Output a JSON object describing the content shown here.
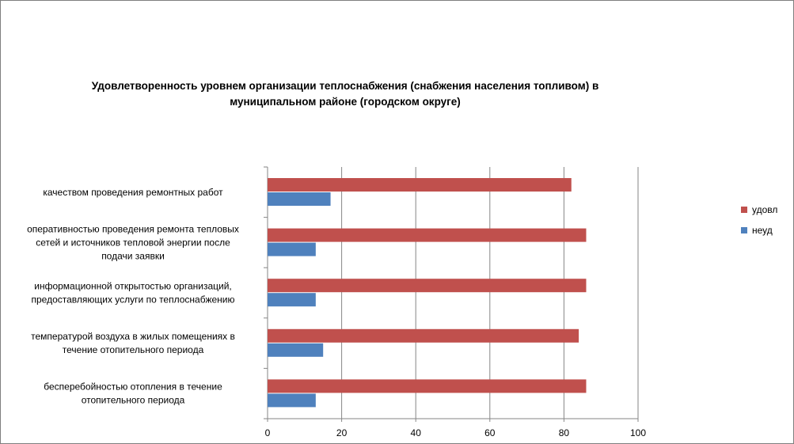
{
  "chart_data": {
    "type": "bar",
    "orientation": "horizontal",
    "title": "Удовлетворенность уровнем организации теплоснабжения (снабжения населения топливом) в муниципальном районе (городском округе)",
    "categories": [
      [
        "качеством проведения ремонтных работ"
      ],
      [
        "оперативностью проведения ремонта тепловых",
        "сетей и источников тепловой энергии после",
        "подачи заявки"
      ],
      [
        "информационной открытостью организаций,",
        "предоставляющих услуги по теплоснабжению"
      ],
      [
        "температурой воздуха в жилых помещениях в",
        "течение отопительного периода"
      ],
      [
        "бесперебойностью отопления в течение",
        "отопительного периода"
      ]
    ],
    "series": [
      {
        "name": "удовл",
        "color": "#c0504d",
        "values": [
          82,
          86,
          86,
          84,
          86
        ]
      },
      {
        "name": "неуд",
        "color": "#4f81bd",
        "values": [
          17,
          13,
          13,
          15,
          13
        ]
      }
    ],
    "xlim": [
      0,
      100
    ],
    "xticks": [
      "0",
      "20",
      "40",
      "60",
      "80",
      "100"
    ],
    "grid": true,
    "legend_position": "right"
  }
}
